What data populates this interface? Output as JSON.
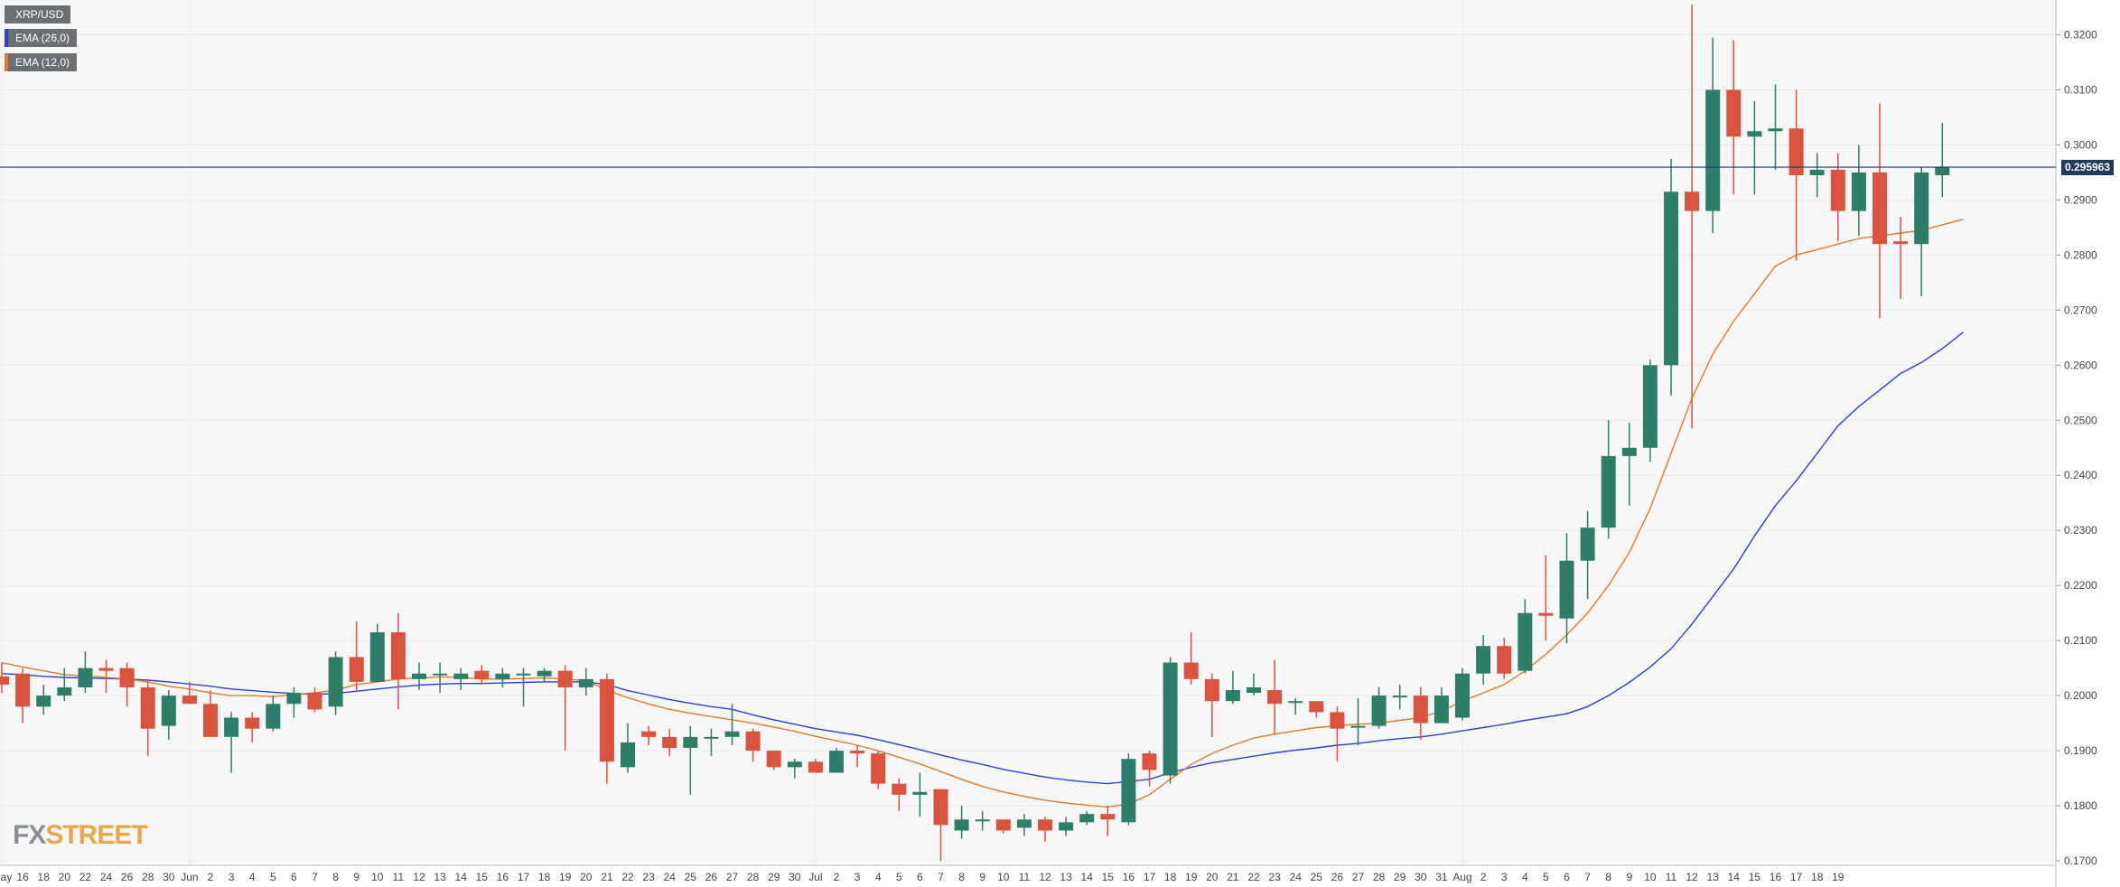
{
  "legend": {
    "symbol": "XRP/USD",
    "ema_slow": "EMA (26,0)",
    "ema_fast": "EMA (12,0)"
  },
  "last_price": "0.295963",
  "logo": {
    "fx": "FX",
    "street": "STREET"
  },
  "colors": {
    "up": "#2e7d69",
    "down": "#d9533e",
    "ema_slow": "#2b3fd6",
    "ema_fast": "#e07b2a",
    "price_line": "#1f3a5f",
    "grid": "#ececec",
    "panel_bg": "#f7f7f7"
  },
  "chart_data": {
    "type": "candlestick",
    "title": "XRP/USD",
    "ylim": [
      0.17,
      0.3255
    ],
    "y_ticks": [
      "0.1700",
      "0.1800",
      "0.1900",
      "0.2000",
      "0.2100",
      "0.2200",
      "0.2300",
      "0.2400",
      "0.2500",
      "0.2600",
      "0.2700",
      "0.2800",
      "0.2900",
      "0.3000",
      "0.3100",
      "0.3200"
    ],
    "x_ticks": [
      "May",
      "16",
      "18",
      "20",
      "22",
      "24",
      "26",
      "28",
      "30",
      "Jun",
      "2",
      "3",
      "4",
      "5",
      "6",
      "7",
      "8",
      "9",
      "10",
      "11",
      "12",
      "13",
      "14",
      "15",
      "16",
      "17",
      "18",
      "19",
      "20",
      "21",
      "22",
      "23",
      "24",
      "25",
      "26",
      "27",
      "28",
      "29",
      "30",
      "Jul",
      "2",
      "3",
      "4",
      "5",
      "6",
      "7",
      "8",
      "9",
      "10",
      "11",
      "12",
      "13",
      "14",
      "15",
      "16",
      "17",
      "18",
      "19",
      "20",
      "21",
      "22",
      "23",
      "24",
      "25",
      "26",
      "27",
      "28",
      "29",
      "30",
      "31",
      "Aug",
      "2",
      "3",
      "4",
      "5",
      "6",
      "7",
      "8",
      "9",
      "10",
      "11",
      "12",
      "13",
      "14",
      "15",
      "16",
      "17",
      "18",
      "19"
    ],
    "candles": [
      {
        "o": 0.2035,
        "h": 0.206,
        "l": 0.2005,
        "c": 0.202
      },
      {
        "o": 0.204,
        "h": 0.205,
        "l": 0.195,
        "c": 0.198
      },
      {
        "o": 0.198,
        "h": 0.202,
        "l": 0.1965,
        "c": 0.2
      },
      {
        "o": 0.2,
        "h": 0.205,
        "l": 0.199,
        "c": 0.2015
      },
      {
        "o": 0.2015,
        "h": 0.208,
        "l": 0.2005,
        "c": 0.205
      },
      {
        "o": 0.205,
        "h": 0.2065,
        "l": 0.2005,
        "c": 0.2045
      },
      {
        "o": 0.205,
        "h": 0.206,
        "l": 0.198,
        "c": 0.2015
      },
      {
        "o": 0.2015,
        "h": 0.203,
        "l": 0.189,
        "c": 0.194
      },
      {
        "o": 0.1945,
        "h": 0.201,
        "l": 0.192,
        "c": 0.2
      },
      {
        "o": 0.2,
        "h": 0.2025,
        "l": 0.1985,
        "c": 0.1985
      },
      {
        "o": 0.1985,
        "h": 0.201,
        "l": 0.1925,
        "c": 0.1925
      },
      {
        "o": 0.1925,
        "h": 0.197,
        "l": 0.186,
        "c": 0.196
      },
      {
        "o": 0.196,
        "h": 0.197,
        "l": 0.1915,
        "c": 0.194
      },
      {
        "o": 0.194,
        "h": 0.2,
        "l": 0.1935,
        "c": 0.1985
      },
      {
        "o": 0.1985,
        "h": 0.2015,
        "l": 0.196,
        "c": 0.2005
      },
      {
        "o": 0.2005,
        "h": 0.2015,
        "l": 0.197,
        "c": 0.1975
      },
      {
        "o": 0.198,
        "h": 0.208,
        "l": 0.1965,
        "c": 0.207
      },
      {
        "o": 0.207,
        "h": 0.2135,
        "l": 0.201,
        "c": 0.2025
      },
      {
        "o": 0.2025,
        "h": 0.213,
        "l": 0.2025,
        "c": 0.2115
      },
      {
        "o": 0.2115,
        "h": 0.215,
        "l": 0.1975,
        "c": 0.203
      },
      {
        "o": 0.203,
        "h": 0.206,
        "l": 0.201,
        "c": 0.204
      },
      {
        "o": 0.204,
        "h": 0.206,
        "l": 0.2005,
        "c": 0.204
      },
      {
        "o": 0.203,
        "h": 0.205,
        "l": 0.201,
        "c": 0.204
      },
      {
        "o": 0.2045,
        "h": 0.2055,
        "l": 0.202,
        "c": 0.203
      },
      {
        "o": 0.203,
        "h": 0.205,
        "l": 0.2015,
        "c": 0.204
      },
      {
        "o": 0.204,
        "h": 0.205,
        "l": 0.198,
        "c": 0.204
      },
      {
        "o": 0.2035,
        "h": 0.205,
        "l": 0.2025,
        "c": 0.2045
      },
      {
        "o": 0.2045,
        "h": 0.2055,
        "l": 0.19,
        "c": 0.2015
      },
      {
        "o": 0.2015,
        "h": 0.205,
        "l": 0.2,
        "c": 0.203
      },
      {
        "o": 0.203,
        "h": 0.204,
        "l": 0.184,
        "c": 0.188
      },
      {
        "o": 0.187,
        "h": 0.195,
        "l": 0.186,
        "c": 0.1915
      },
      {
        "o": 0.1935,
        "h": 0.1945,
        "l": 0.191,
        "c": 0.1925
      },
      {
        "o": 0.1925,
        "h": 0.194,
        "l": 0.189,
        "c": 0.1905
      },
      {
        "o": 0.1905,
        "h": 0.1945,
        "l": 0.182,
        "c": 0.1925
      },
      {
        "o": 0.1925,
        "h": 0.194,
        "l": 0.189,
        "c": 0.1925
      },
      {
        "o": 0.1925,
        "h": 0.1985,
        "l": 0.191,
        "c": 0.1935
      },
      {
        "o": 0.1935,
        "h": 0.194,
        "l": 0.188,
        "c": 0.19
      },
      {
        "o": 0.19,
        "h": 0.19,
        "l": 0.1865,
        "c": 0.187
      },
      {
        "o": 0.187,
        "h": 0.1885,
        "l": 0.185,
        "c": 0.188
      },
      {
        "o": 0.188,
        "h": 0.1885,
        "l": 0.186,
        "c": 0.186
      },
      {
        "o": 0.186,
        "h": 0.1905,
        "l": 0.186,
        "c": 0.19
      },
      {
        "o": 0.19,
        "h": 0.191,
        "l": 0.187,
        "c": 0.1895
      },
      {
        "o": 0.1895,
        "h": 0.19,
        "l": 0.183,
        "c": 0.184
      },
      {
        "o": 0.184,
        "h": 0.185,
        "l": 0.179,
        "c": 0.182
      },
      {
        "o": 0.182,
        "h": 0.186,
        "l": 0.178,
        "c": 0.1825
      },
      {
        "o": 0.183,
        "h": 0.183,
        "l": 0.17,
        "c": 0.1765
      },
      {
        "o": 0.1755,
        "h": 0.18,
        "l": 0.174,
        "c": 0.1775
      },
      {
        "o": 0.1775,
        "h": 0.179,
        "l": 0.1755,
        "c": 0.1775
      },
      {
        "o": 0.1775,
        "h": 0.1775,
        "l": 0.175,
        "c": 0.1755
      },
      {
        "o": 0.176,
        "h": 0.1785,
        "l": 0.1745,
        "c": 0.1775
      },
      {
        "o": 0.1775,
        "h": 0.178,
        "l": 0.1735,
        "c": 0.1755
      },
      {
        "o": 0.1755,
        "h": 0.178,
        "l": 0.1745,
        "c": 0.177
      },
      {
        "o": 0.177,
        "h": 0.179,
        "l": 0.1765,
        "c": 0.1785
      },
      {
        "o": 0.1785,
        "h": 0.18,
        "l": 0.1745,
        "c": 0.1775
      },
      {
        "o": 0.177,
        "h": 0.1895,
        "l": 0.1765,
        "c": 0.1885
      },
      {
        "o": 0.1895,
        "h": 0.19,
        "l": 0.1835,
        "c": 0.1865
      },
      {
        "o": 0.1855,
        "h": 0.207,
        "l": 0.184,
        "c": 0.206
      },
      {
        "o": 0.206,
        "h": 0.2115,
        "l": 0.202,
        "c": 0.203
      },
      {
        "o": 0.203,
        "h": 0.204,
        "l": 0.1925,
        "c": 0.199
      },
      {
        "o": 0.199,
        "h": 0.2045,
        "l": 0.1985,
        "c": 0.201
      },
      {
        "o": 0.2005,
        "h": 0.204,
        "l": 0.2,
        "c": 0.2015
      },
      {
        "o": 0.201,
        "h": 0.2065,
        "l": 0.193,
        "c": 0.1985
      },
      {
        "o": 0.199,
        "h": 0.1995,
        "l": 0.1965,
        "c": 0.199
      },
      {
        "o": 0.199,
        "h": 0.199,
        "l": 0.196,
        "c": 0.197
      },
      {
        "o": 0.197,
        "h": 0.198,
        "l": 0.188,
        "c": 0.194
      },
      {
        "o": 0.1945,
        "h": 0.1995,
        "l": 0.191,
        "c": 0.1945
      },
      {
        "o": 0.1945,
        "h": 0.2015,
        "l": 0.194,
        "c": 0.2
      },
      {
        "o": 0.2,
        "h": 0.202,
        "l": 0.1975,
        "c": 0.2
      },
      {
        "o": 0.2,
        "h": 0.2015,
        "l": 0.192,
        "c": 0.195
      },
      {
        "o": 0.195,
        "h": 0.2015,
        "l": 0.195,
        "c": 0.2
      },
      {
        "o": 0.196,
        "h": 0.205,
        "l": 0.1955,
        "c": 0.204
      },
      {
        "o": 0.204,
        "h": 0.211,
        "l": 0.202,
        "c": 0.209
      },
      {
        "o": 0.209,
        "h": 0.2105,
        "l": 0.203,
        "c": 0.204
      },
      {
        "o": 0.2045,
        "h": 0.2175,
        "l": 0.204,
        "c": 0.215
      },
      {
        "o": 0.215,
        "h": 0.2255,
        "l": 0.21,
        "c": 0.2145
      },
      {
        "o": 0.214,
        "h": 0.2295,
        "l": 0.2095,
        "c": 0.2245
      },
      {
        "o": 0.2245,
        "h": 0.2335,
        "l": 0.2175,
        "c": 0.2305
      },
      {
        "o": 0.2305,
        "h": 0.25,
        "l": 0.2285,
        "c": 0.2435
      },
      {
        "o": 0.2435,
        "h": 0.2495,
        "l": 0.2345,
        "c": 0.245
      },
      {
        "o": 0.245,
        "h": 0.261,
        "l": 0.2425,
        "c": 0.26
      },
      {
        "o": 0.26,
        "h": 0.2975,
        "l": 0.2545,
        "c": 0.2915
      },
      {
        "o": 0.2915,
        "h": 0.3255,
        "l": 0.2485,
        "c": 0.288
      },
      {
        "o": 0.288,
        "h": 0.3195,
        "l": 0.284,
        "c": 0.31
      },
      {
        "o": 0.31,
        "h": 0.319,
        "l": 0.291,
        "c": 0.3015
      },
      {
        "o": 0.3015,
        "h": 0.308,
        "l": 0.291,
        "c": 0.3025
      },
      {
        "o": 0.3025,
        "h": 0.311,
        "l": 0.2955,
        "c": 0.303
      },
      {
        "o": 0.303,
        "h": 0.31,
        "l": 0.279,
        "c": 0.2945
      },
      {
        "o": 0.2945,
        "h": 0.2985,
        "l": 0.2905,
        "c": 0.2955
      },
      {
        "o": 0.2955,
        "h": 0.2985,
        "l": 0.2825,
        "c": 0.288
      },
      {
        "o": 0.288,
        "h": 0.3,
        "l": 0.2835,
        "c": 0.295
      },
      {
        "o": 0.295,
        "h": 0.3075,
        "l": 0.2685,
        "c": 0.282
      },
      {
        "o": 0.2825,
        "h": 0.287,
        "l": 0.272,
        "c": 0.282
      },
      {
        "o": 0.282,
        "h": 0.296,
        "l": 0.2725,
        "c": 0.295
      },
      {
        "o": 0.2945,
        "h": 0.304,
        "l": 0.2905,
        "c": 0.296
      }
    ],
    "series": [
      {
        "name": "EMA (26,0)",
        "values": [
          0.204,
          0.2038,
          0.2035,
          0.2033,
          0.2032,
          0.2031,
          0.203,
          0.2028,
          0.2025,
          0.2021,
          0.2017,
          0.2012,
          0.2009,
          0.2006,
          0.2004,
          0.2002,
          0.2004,
          0.2008,
          0.2012,
          0.2016,
          0.2019,
          0.2021,
          0.2022,
          0.2022,
          0.2023,
          0.2024,
          0.2025,
          0.2025,
          0.2025,
          0.202,
          0.2009,
          0.2001,
          0.1993,
          0.1986,
          0.198,
          0.1975,
          0.1965,
          0.1956,
          0.1948,
          0.194,
          0.1934,
          0.1928,
          0.192,
          0.1911,
          0.1902,
          0.1892,
          0.1883,
          0.1875,
          0.1866,
          0.1859,
          0.1852,
          0.1847,
          0.1843,
          0.184,
          0.1844,
          0.1848,
          0.186,
          0.187,
          0.1878,
          0.1884,
          0.189,
          0.1896,
          0.1901,
          0.1905,
          0.191,
          0.1913,
          0.1918,
          0.1922,
          0.1925,
          0.193,
          0.1936,
          0.1942,
          0.1948,
          0.1955,
          0.1961,
          0.1967,
          0.198,
          0.2,
          0.2024,
          0.2052,
          0.2085,
          0.213,
          0.218,
          0.223,
          0.229,
          0.2345,
          0.239,
          0.244,
          0.249,
          0.2525,
          0.2555,
          0.2585,
          0.2605,
          0.263,
          0.266
        ]
      },
      {
        "name": "EMA (12,0)",
        "values": [
          0.206,
          0.2052,
          0.2045,
          0.2038,
          0.2036,
          0.2033,
          0.203,
          0.2025,
          0.2017,
          0.2012,
          0.2005,
          0.2,
          0.2,
          0.1998,
          0.2002,
          0.2005,
          0.201,
          0.202,
          0.2025,
          0.203,
          0.2032,
          0.2034,
          0.2033,
          0.203,
          0.203,
          0.2031,
          0.2032,
          0.203,
          0.2027,
          0.201,
          0.1996,
          0.1985,
          0.1975,
          0.1968,
          0.1962,
          0.1956,
          0.195,
          0.1943,
          0.1935,
          0.1926,
          0.1918,
          0.191,
          0.19,
          0.1888,
          0.1876,
          0.1862,
          0.1848,
          0.1835,
          0.1825,
          0.1817,
          0.181,
          0.1805,
          0.1801,
          0.1798,
          0.1803,
          0.182,
          0.1848,
          0.1875,
          0.1895,
          0.191,
          0.1923,
          0.193,
          0.1936,
          0.1942,
          0.1945,
          0.1948,
          0.195,
          0.1955,
          0.196,
          0.1972,
          0.199,
          0.2005,
          0.202,
          0.2045,
          0.2075,
          0.211,
          0.215,
          0.22,
          0.226,
          0.234,
          0.244,
          0.254,
          0.262,
          0.268,
          0.273,
          0.278,
          0.28,
          0.281,
          0.282,
          0.283,
          0.2835,
          0.284,
          0.2845,
          0.2855,
          0.2865
        ]
      }
    ],
    "last_price": 0.295963
  }
}
